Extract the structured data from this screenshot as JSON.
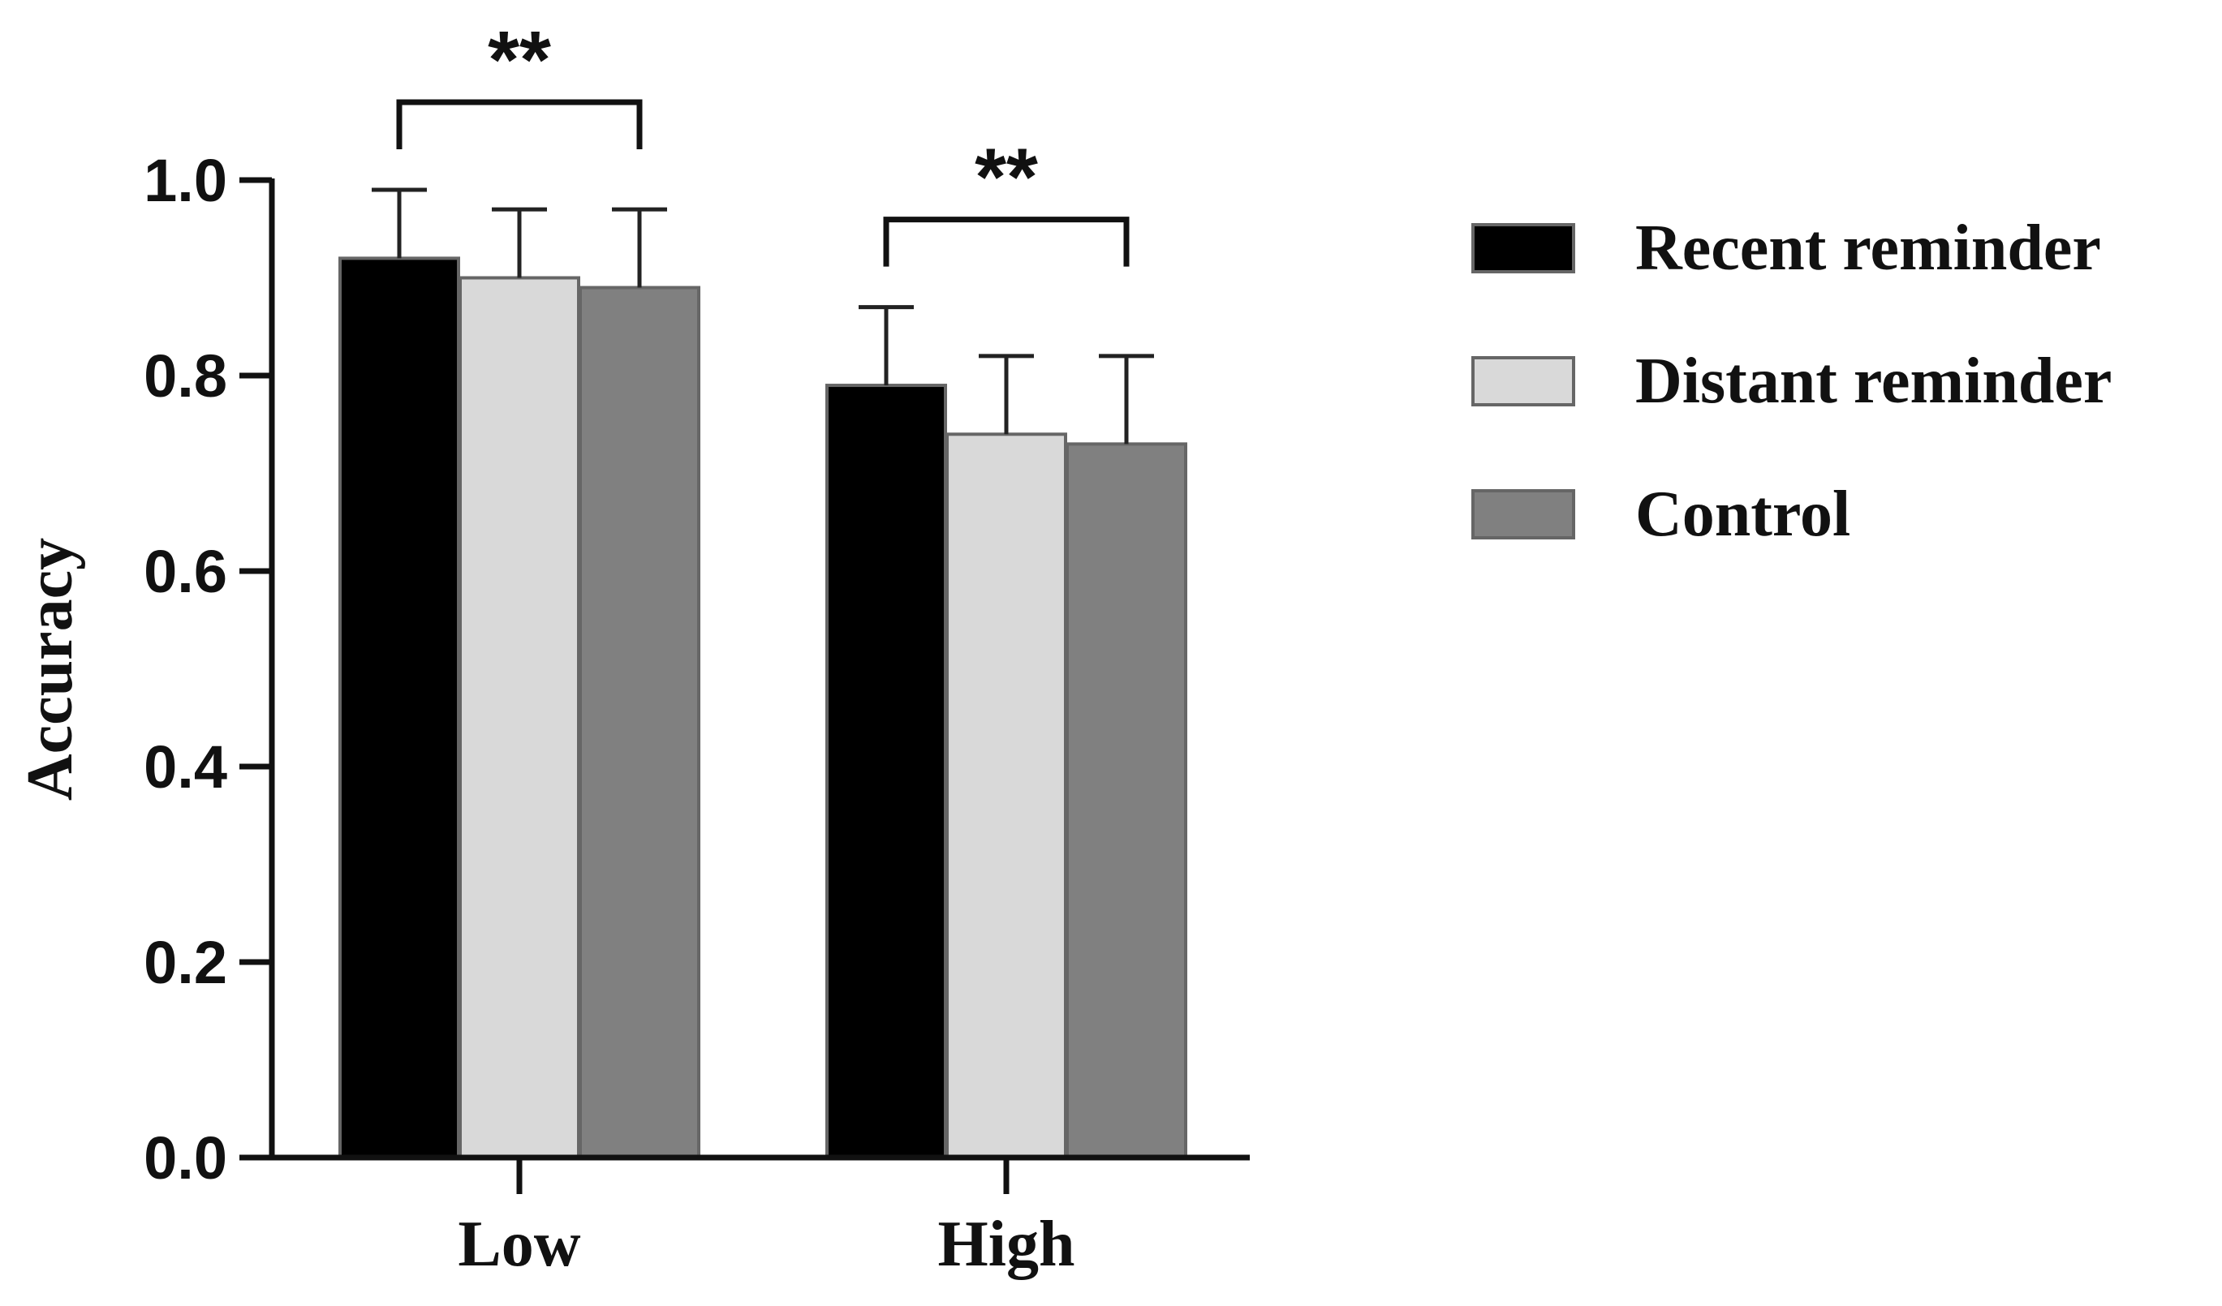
{
  "chart_data": {
    "type": "bar",
    "title": "",
    "xlabel": "",
    "ylabel": "Accuracy",
    "ylim": [
      0,
      1.0
    ],
    "yticks": [
      "0.0",
      "0.2",
      "0.4",
      "0.6",
      "0.8",
      "1.0"
    ],
    "categories": [
      "Low",
      "High"
    ],
    "series": [
      {
        "name": "Recent reminder",
        "color": "#000000",
        "values": [
          0.92,
          0.79
        ],
        "errors": [
          0.07,
          0.08
        ]
      },
      {
        "name": "Distant reminder",
        "color": "#d9d9d9",
        "values": [
          0.9,
          0.74
        ],
        "errors": [
          0.07,
          0.08
        ]
      },
      {
        "name": "Control",
        "color": "#808080",
        "values": [
          0.89,
          0.73
        ],
        "errors": [
          0.08,
          0.09
        ]
      }
    ],
    "significance": [
      {
        "category": "Low",
        "from_series": "Recent reminder",
        "to_series": "Control",
        "label": "**"
      },
      {
        "category": "High",
        "from_series": "Recent reminder",
        "to_series": "Control",
        "label": "**"
      }
    ],
    "legend_position": "right"
  }
}
